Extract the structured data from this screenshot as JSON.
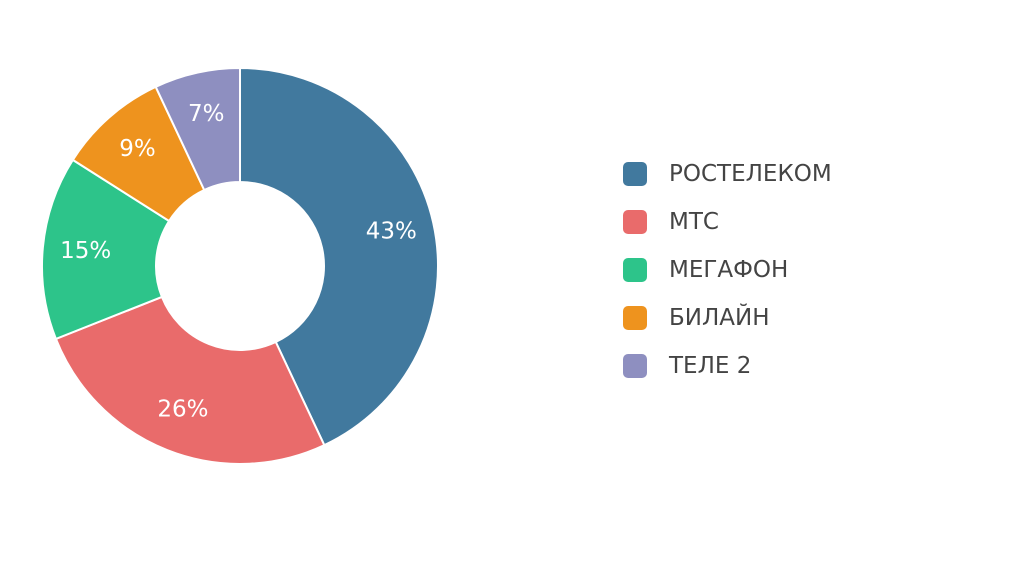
{
  "chart_data": {
    "type": "pie",
    "variant": "donut",
    "legend_position": "right",
    "title": "",
    "slices": [
      {
        "name": "РОСТЕЛЕКОМ",
        "value": 43,
        "label": "43%",
        "color": "#41799e"
      },
      {
        "name": "МТС",
        "value": 26,
        "label": "26%",
        "color": "#e96b6b"
      },
      {
        "name": "МЕГАФОН",
        "value": 15,
        "label": "15%",
        "color": "#2dc48a"
      },
      {
        "name": "БИЛАЙН",
        "value": 9,
        "label": "9%",
        "color": "#ee931e"
      },
      {
        "name": "ТЕЛЕ 2",
        "value": 7,
        "label": "7%",
        "color": "#8e8fc0"
      }
    ]
  }
}
